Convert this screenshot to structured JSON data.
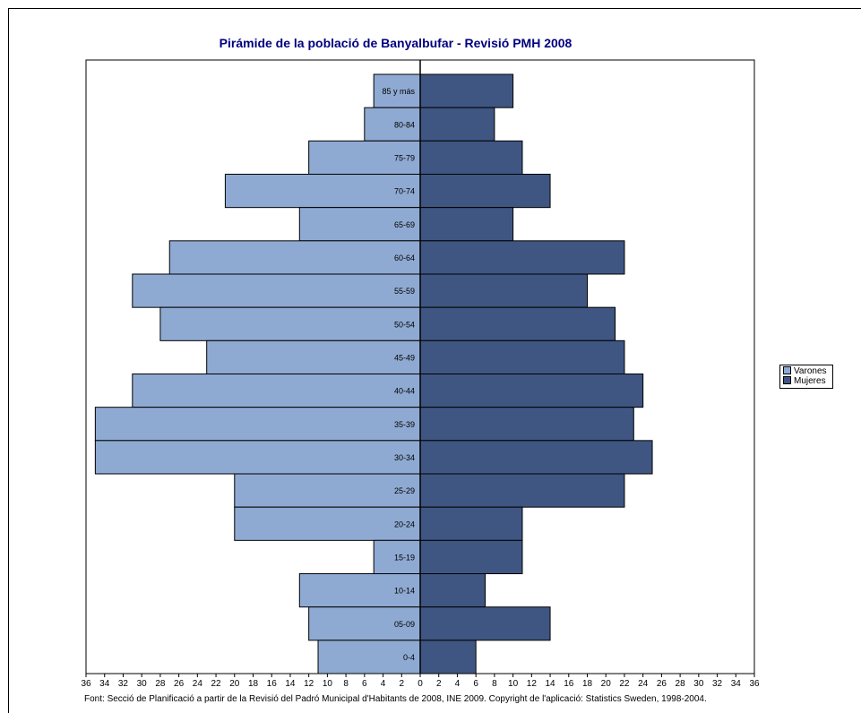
{
  "chart_data": {
    "type": "bar",
    "orientation": "horizontal",
    "variant": "population-pyramid",
    "title": "Pirámide de la població de Banyalbufar - Revisió PMH 2008",
    "categories": [
      "85 y más",
      "80-84",
      "75-79",
      "70-74",
      "65-69",
      "60-64",
      "55-59",
      "50-54",
      "45-49",
      "40-44",
      "35-39",
      "30-34",
      "25-29",
      "20-24",
      "15-19",
      "10-14",
      "05-09",
      "0-4"
    ],
    "series": [
      {
        "name": "Varones",
        "color": "#8FAAD2",
        "values": [
          5,
          6,
          12,
          21,
          13,
          27,
          31,
          28,
          23,
          31,
          35,
          35,
          20,
          20,
          5,
          13,
          12,
          11
        ]
      },
      {
        "name": "Mujeres",
        "color": "#3F5682",
        "values": [
          10,
          8,
          11,
          14,
          10,
          22,
          18,
          21,
          22,
          24,
          23,
          25,
          22,
          11,
          11,
          7,
          14,
          6
        ]
      }
    ],
    "xlim": [
      -36,
      36
    ],
    "xticks": [
      -36,
      -34,
      -32,
      -30,
      -28,
      -26,
      -24,
      -22,
      -20,
      -18,
      -16,
      -14,
      -12,
      -10,
      -8,
      -6,
      -4,
      -2,
      0,
      2,
      4,
      6,
      8,
      10,
      12,
      14,
      16,
      18,
      20,
      22,
      24,
      26,
      28,
      30,
      32,
      34,
      36
    ],
    "xtick_labels": [
      "36",
      "34",
      "32",
      "30",
      "28",
      "26",
      "24",
      "22",
      "20",
      "18",
      "16",
      "14",
      "12",
      "10",
      "8",
      "6",
      "4",
      "2",
      "0",
      "2",
      "4",
      "6",
      "8",
      "10",
      "12",
      "14",
      "16",
      "18",
      "20",
      "22",
      "24",
      "26",
      "28",
      "30",
      "32",
      "34",
      "36"
    ],
    "legend_position": "right",
    "grid": false,
    "title_color": "#000080"
  },
  "legend": {
    "items": [
      {
        "label": "Varones",
        "color": "#8FAAD2"
      },
      {
        "label": "Mujeres",
        "color": "#3F5682"
      }
    ]
  },
  "footnote": "Font: Secció de Planificació a partir de la Revisió del Padró Municipal d'Habitants de 2008, INE 2009. Copyright de l'aplicació: Statistics Sweden, 1998-2004."
}
